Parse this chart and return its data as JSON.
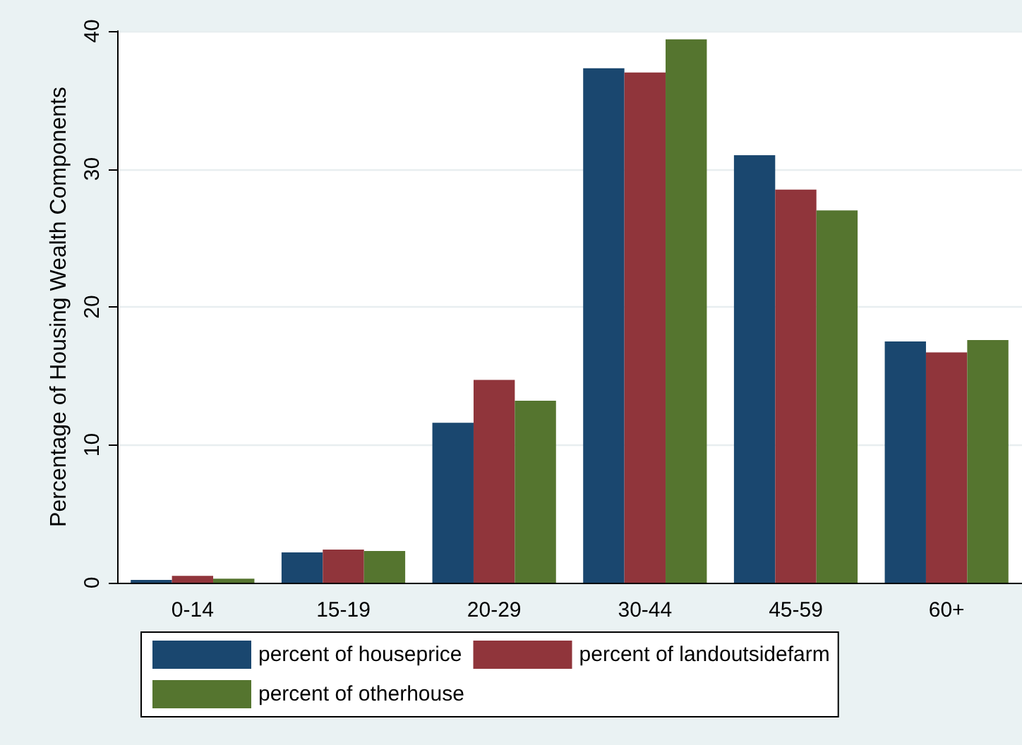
{
  "chart_data": {
    "type": "bar",
    "ylabel": "Percentage of Housing Wealth Components",
    "categories": [
      "0-14",
      "15-19",
      "20-29",
      "30-44",
      "45-59",
      "60+"
    ],
    "series": [
      {
        "name": "percent of houseprice",
        "color": "#1a476f",
        "values": [
          0.2,
          2.2,
          11.6,
          37.3,
          31.0,
          17.5
        ]
      },
      {
        "name": "percent of landoutsidefarm",
        "color": "#90353b",
        "values": [
          0.5,
          2.4,
          14.7,
          37.0,
          28.5,
          16.7
        ]
      },
      {
        "name": "percent of otherhouse",
        "color": "#55752f",
        "values": [
          0.3,
          2.3,
          13.2,
          39.4,
          27.0,
          17.6
        ]
      }
    ],
    "ylim": [
      0,
      40
    ],
    "yticks": [
      0,
      10,
      20,
      30,
      40
    ],
    "grid": "y",
    "legend": "bottom"
  }
}
